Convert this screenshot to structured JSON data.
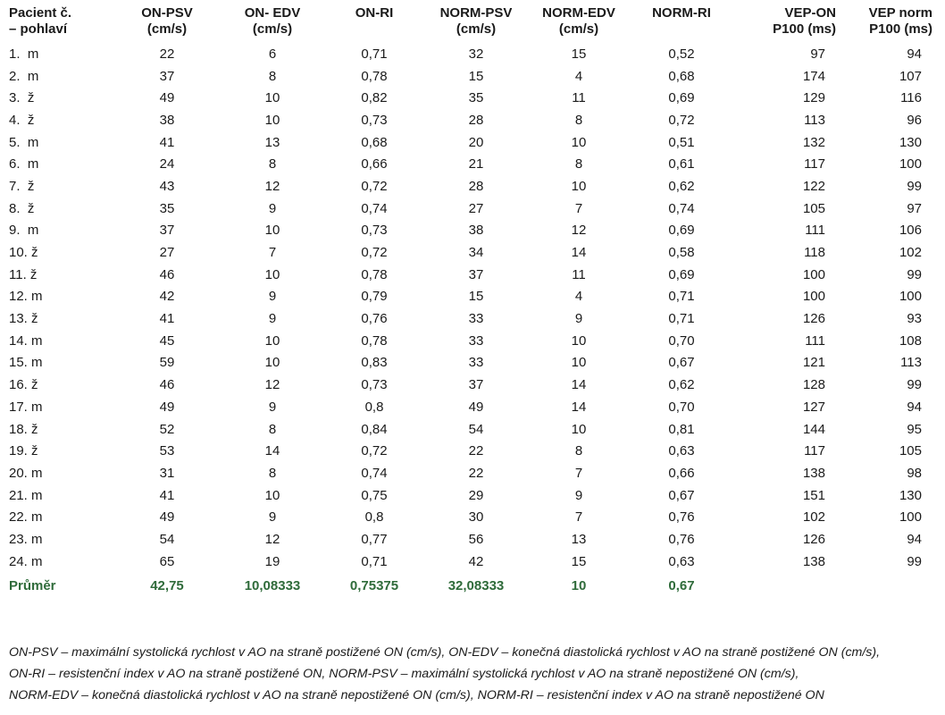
{
  "table": {
    "headers": [
      [
        "Pacient č.",
        "– pohlaví"
      ],
      [
        "ON-PSV",
        "(cm/s)"
      ],
      [
        "ON- EDV",
        "(cm/s)"
      ],
      [
        "ON-RI",
        ""
      ],
      [
        "NORM-PSV",
        "(cm/s)"
      ],
      [
        "NORM-EDV",
        "(cm/s)"
      ],
      [
        "NORM-RI",
        ""
      ],
      [
        "VEP-ON",
        "P100 (ms)"
      ],
      [
        "VEP norm",
        "P100 (ms)"
      ]
    ],
    "rows": [
      [
        "1.  m",
        "22",
        "6",
        "0,71",
        "32",
        "15",
        "0,52",
        "97",
        "94"
      ],
      [
        "2.  m",
        "37",
        "8",
        "0,78",
        "15",
        "4",
        "0,68",
        "174",
        "107"
      ],
      [
        "3.  ž",
        "49",
        "10",
        "0,82",
        "35",
        "11",
        "0,69",
        "129",
        "116"
      ],
      [
        "4.  ž",
        "38",
        "10",
        "0,73",
        "28",
        "8",
        "0,72",
        "113",
        "96"
      ],
      [
        "5.  m",
        "41",
        "13",
        "0,68",
        "20",
        "10",
        "0,51",
        "132",
        "130"
      ],
      [
        "6.  m",
        "24",
        "8",
        "0,66",
        "21",
        "8",
        "0,61",
        "117",
        "100"
      ],
      [
        "7.  ž",
        "43",
        "12",
        "0,72",
        "28",
        "10",
        "0,62",
        "122",
        "99"
      ],
      [
        "8.  ž",
        "35",
        "9",
        "0,74",
        "27",
        "7",
        "0,74",
        "105",
        "97"
      ],
      [
        "9.  m",
        "37",
        "10",
        "0,73",
        "38",
        "12",
        "0,69",
        "111",
        "106"
      ],
      [
        "10. ž",
        "27",
        "7",
        "0,72",
        "34",
        "14",
        "0,58",
        "118",
        "102"
      ],
      [
        "11. ž",
        "46",
        "10",
        "0,78",
        "37",
        "11",
        "0,69",
        "100",
        "99"
      ],
      [
        "12. m",
        "42",
        "9",
        "0,79",
        "15",
        "4",
        "0,71",
        "100",
        "100"
      ],
      [
        "13. ž",
        "41",
        "9",
        "0,76",
        "33",
        "9",
        "0,71",
        "126",
        "93"
      ],
      [
        "14. m",
        "45",
        "10",
        "0,78",
        "33",
        "10",
        "0,70",
        "111",
        "108"
      ],
      [
        "15. m",
        "59",
        "10",
        "0,83",
        "33",
        "10",
        "0,67",
        "121",
        "113"
      ],
      [
        "16. ž",
        "46",
        "12",
        "0,73",
        "37",
        "14",
        "0,62",
        "128",
        "99"
      ],
      [
        "17. m",
        "49",
        "9",
        "0,8",
        "49",
        "14",
        "0,70",
        "127",
        "94"
      ],
      [
        "18. ž",
        "52",
        "8",
        "0,84",
        "54",
        "10",
        "0,81",
        "144",
        "95"
      ],
      [
        "19. ž",
        "53",
        "14",
        "0,72",
        "22",
        "8",
        "0,63",
        "117",
        "105"
      ],
      [
        "20. m",
        "31",
        "8",
        "0,74",
        "22",
        "7",
        "0,66",
        "138",
        "98"
      ],
      [
        "21. m",
        "41",
        "10",
        "0,75",
        "29",
        "9",
        "0,67",
        "151",
        "130"
      ],
      [
        "22. m",
        "49",
        "9",
        "0,8",
        "30",
        "7",
        "0,76",
        "102",
        "100"
      ],
      [
        "23. m",
        "54",
        "12",
        "0,77",
        "56",
        "13",
        "0,76",
        "126",
        "94"
      ],
      [
        "24. m",
        "65",
        "19",
        "0,71",
        "42",
        "15",
        "0,63",
        "138",
        "99"
      ]
    ],
    "average": [
      "Průměr",
      "42,75",
      "10,08333",
      "0,75375",
      "32,08333",
      "10",
      "0,67",
      "",
      ""
    ]
  },
  "footnote": {
    "lines": [
      "ON-PSV – maximální systolická rychlost v AO na straně postižené ON (cm/s), ON-EDV – konečná diastolická rychlost v AO na straně postižené ON (cm/s),",
      "ON-RI – resistenční index v AO na straně postižené ON, NORM-PSV – maximální systolická rychlost v AO na straně nepostižené ON (cm/s),",
      "NORM-EDV – konečná diastolická rychlost v AO na straně nepostižené ON (cm/s), NORM-RI – resistenční index v AO na straně nepostižené ON"
    ]
  },
  "colors": {
    "text": "#1a1a1a",
    "average_row": "#2f6b3a"
  }
}
